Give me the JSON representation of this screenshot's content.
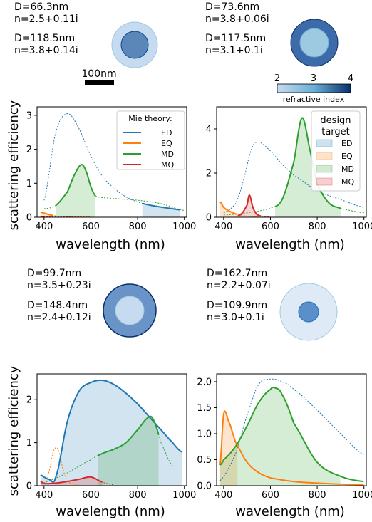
{
  "colors": {
    "ED": "#1f77b4",
    "EQ": "#ff7f0e",
    "MD": "#2ca02c",
    "MQ": "#d62728",
    "cmap_low": "#c6dbef",
    "cmap_high": "#08306b"
  },
  "scale_bar": {
    "label": "100nm"
  },
  "colorbar": {
    "label": "refractive index",
    "ticks": [
      "2",
      "3",
      "4"
    ]
  },
  "panels": [
    {
      "shell": {
        "diameter": "D=118.5nm",
        "index": "n=3.8+0.14i"
      },
      "core": {
        "diameter": "D=66.3nm",
        "index": "n=2.5+0.11i"
      },
      "legend": {
        "title": "Mie theory:",
        "entries": [
          "ED",
          "EQ",
          "MD",
          "MQ"
        ]
      }
    },
    {
      "shell": {
        "diameter": "D=117.5nm",
        "index": "n=3.1+0.1i"
      },
      "core": {
        "diameter": "D=73.6nm",
        "index": "n=3.8+0.06i"
      },
      "legend": {
        "title": "design target",
        "entries": [
          "ED",
          "EQ",
          "MD",
          "MQ"
        ]
      }
    },
    {
      "shell": {
        "diameter": "D=99.7nm",
        "index": "n=3.5+0.23i"
      },
      "core": {
        "diameter": "D=148.4nm",
        "index": "n=2.4+0.12i"
      },
      "legend": null
    },
    {
      "shell": {
        "diameter": "D=162.7nm",
        "index": "n=2.2+0.07i"
      },
      "core": {
        "diameter": "D=109.9nm",
        "index": "n=3.0+0.1i"
      },
      "legend": null
    }
  ],
  "chart_data": [
    {
      "type": "line",
      "xlabel": "wavelength (nm)",
      "ylabel": "scattering efficiency",
      "xlim": [
        370,
        1010
      ],
      "ylim": [
        0,
        3.25
      ],
      "xticks": [
        400,
        600,
        800,
        1000
      ],
      "yticks": [
        0,
        1,
        2,
        3
      ],
      "series": [
        {
          "name": "ED",
          "x": [
            400,
            450,
            500,
            550,
            600,
            650,
            700,
            750,
            800,
            850,
            900,
            950,
            980
          ],
          "y": [
            0.5,
            2.5,
            3.05,
            2.6,
            1.8,
            1.2,
            0.85,
            0.6,
            0.45,
            0.36,
            0.3,
            0.25,
            0.22
          ],
          "solid_range": [
            820,
            980
          ],
          "target_range": [
            820,
            980
          ]
        },
        {
          "name": "EQ",
          "x": [
            385,
            400,
            420,
            440,
            460,
            500,
            550,
            600
          ],
          "y": [
            0.15,
            0.12,
            0.08,
            0.05,
            0.03,
            0.02,
            0.01,
            0.01
          ],
          "solid_range": [
            385,
            440
          ],
          "target_range": [
            385,
            440
          ]
        },
        {
          "name": "MD",
          "x": [
            400,
            450,
            500,
            530,
            560,
            580,
            600,
            620,
            700,
            800,
            900,
            1000
          ],
          "y": [
            0.25,
            0.35,
            0.75,
            1.25,
            1.55,
            1.35,
            0.9,
            0.62,
            0.55,
            0.5,
            0.4,
            0.2
          ],
          "solid_range": [
            450,
            620
          ],
          "target_range": [
            450,
            620
          ]
        },
        {
          "name": "MQ",
          "x": [
            385,
            400,
            450,
            500,
            550,
            600
          ],
          "y": [
            0.02,
            0.02,
            0.01,
            0.01,
            0.01,
            0.0
          ],
          "solid_range": [
            385,
            400
          ],
          "target_range": null
        }
      ]
    },
    {
      "type": "line",
      "xlabel": "wavelength (nm)",
      "ylabel": "",
      "xlim": [
        370,
        1010
      ],
      "ylim": [
        0,
        5.0
      ],
      "xticks": [
        400,
        600,
        800,
        1000
      ],
      "yticks": [
        0,
        2,
        4
      ],
      "series": [
        {
          "name": "ED",
          "x": [
            400,
            450,
            480,
            520,
            550,
            600,
            650,
            700,
            800,
            900,
            1000
          ],
          "y": [
            0.2,
            0.6,
            1.5,
            3.1,
            3.4,
            3.0,
            2.4,
            1.9,
            1.2,
            0.8,
            0.45
          ],
          "solid_range": null,
          "target_range": null
        },
        {
          "name": "EQ",
          "x": [
            385,
            400,
            420,
            440,
            460,
            480,
            500,
            550
          ],
          "y": [
            0.7,
            0.45,
            0.3,
            0.2,
            0.12,
            0.08,
            0.05,
            0.02
          ],
          "solid_range": [
            385,
            460
          ],
          "target_range": [
            385,
            460
          ]
        },
        {
          "name": "MD",
          "x": [
            400,
            500,
            600,
            650,
            700,
            735,
            770,
            800,
            850,
            900,
            1000
          ],
          "y": [
            0.1,
            0.2,
            0.4,
            0.8,
            2.5,
            4.5,
            3.0,
            1.5,
            0.65,
            0.4,
            0.2
          ],
          "solid_range": [
            620,
            900
          ],
          "target_range": [
            620,
            900
          ]
        },
        {
          "name": "MQ",
          "x": [
            460,
            480,
            500,
            510,
            525,
            540,
            560,
            600
          ],
          "y": [
            0.05,
            0.2,
            0.55,
            1.0,
            0.45,
            0.15,
            0.05,
            0.02
          ],
          "solid_range": [
            460,
            560
          ],
          "target_range": [
            460,
            560
          ]
        }
      ]
    },
    {
      "type": "line",
      "xlabel": "wavelength (nm)",
      "ylabel": "scattering efficiency",
      "xlim": [
        370,
        1010
      ],
      "ylim": [
        0,
        2.6
      ],
      "xticks": [
        400,
        600,
        800,
        1000
      ],
      "yticks": [
        0,
        1,
        2
      ],
      "series": [
        {
          "name": "ED",
          "x": [
            385,
            400,
            420,
            450,
            500,
            550,
            600,
            650,
            700,
            750,
            800,
            850,
            900,
            950,
            990
          ],
          "y": [
            0.25,
            0.2,
            0.15,
            0.2,
            1.5,
            2.2,
            2.4,
            2.45,
            2.35,
            2.15,
            1.9,
            1.6,
            1.3,
            1.0,
            0.78
          ],
          "solid_range": [
            385,
            990
          ],
          "target_range": [
            385,
            990
          ]
        },
        {
          "name": "EQ",
          "x": [
            400,
            420,
            440,
            460,
            480,
            500,
            550
          ],
          "y": [
            0.05,
            0.3,
            0.8,
            0.85,
            0.4,
            0.1,
            0.02
          ],
          "solid_range": null,
          "target_range": null
        },
        {
          "name": "MD",
          "x": [
            385,
            500,
            600,
            650,
            700,
            750,
            800,
            850,
            870,
            900,
            950
          ],
          "y": [
            0.05,
            0.3,
            0.6,
            0.75,
            0.85,
            1.0,
            1.3,
            1.6,
            1.5,
            1.0,
            0.45
          ],
          "solid_range": [
            630,
            890
          ],
          "target_range": [
            630,
            890
          ]
        },
        {
          "name": "MQ",
          "x": [
            385,
            400,
            450,
            500,
            550,
            600,
            650,
            700
          ],
          "y": [
            0.1,
            0.05,
            0.06,
            0.1,
            0.15,
            0.2,
            0.08,
            0.02
          ],
          "solid_range": [
            385,
            650
          ],
          "target_range": [
            385,
            650
          ]
        }
      ]
    },
    {
      "type": "line",
      "xlabel": "wavelength (nm)",
      "ylabel": "",
      "xlim": [
        370,
        1010
      ],
      "ylim": [
        0,
        2.15
      ],
      "xticks": [
        400,
        600,
        800,
        1000
      ],
      "yticks": [
        0.0,
        0.5,
        1.0,
        1.5,
        2.0
      ],
      "series": [
        {
          "name": "ED",
          "x": [
            385,
            450,
            500,
            550,
            600,
            650,
            700,
            800,
            900,
            1000
          ],
          "y": [
            0.1,
            0.6,
            1.35,
            1.95,
            2.05,
            2.0,
            1.85,
            1.45,
            1.0,
            0.6
          ],
          "solid_range": null,
          "target_range": null
        },
        {
          "name": "EQ",
          "x": [
            385,
            400,
            420,
            450,
            500,
            550,
            600,
            700,
            800,
            900,
            1000
          ],
          "y": [
            0.4,
            1.38,
            1.25,
            0.85,
            0.45,
            0.25,
            0.15,
            0.08,
            0.05,
            0.03,
            0.02
          ],
          "solid_range": [
            385,
            1000
          ],
          "target_range": [
            385,
            460
          ]
        },
        {
          "name": "MD",
          "x": [
            385,
            400,
            450,
            500,
            550,
            600,
            620,
            650,
            700,
            800,
            900,
            1000
          ],
          "y": [
            0.4,
            0.5,
            0.75,
            1.15,
            1.6,
            1.85,
            1.88,
            1.75,
            1.2,
            0.45,
            0.18,
            0.08
          ],
          "solid_range": [
            385,
            1000
          ],
          "target_range": [
            385,
            900
          ]
        },
        {
          "name": "MQ",
          "x": [
            385,
            500,
            700,
            1000
          ],
          "y": [
            0.0,
            0.0,
            0.0,
            0.0
          ],
          "solid_range": null,
          "target_range": null
        }
      ]
    }
  ]
}
